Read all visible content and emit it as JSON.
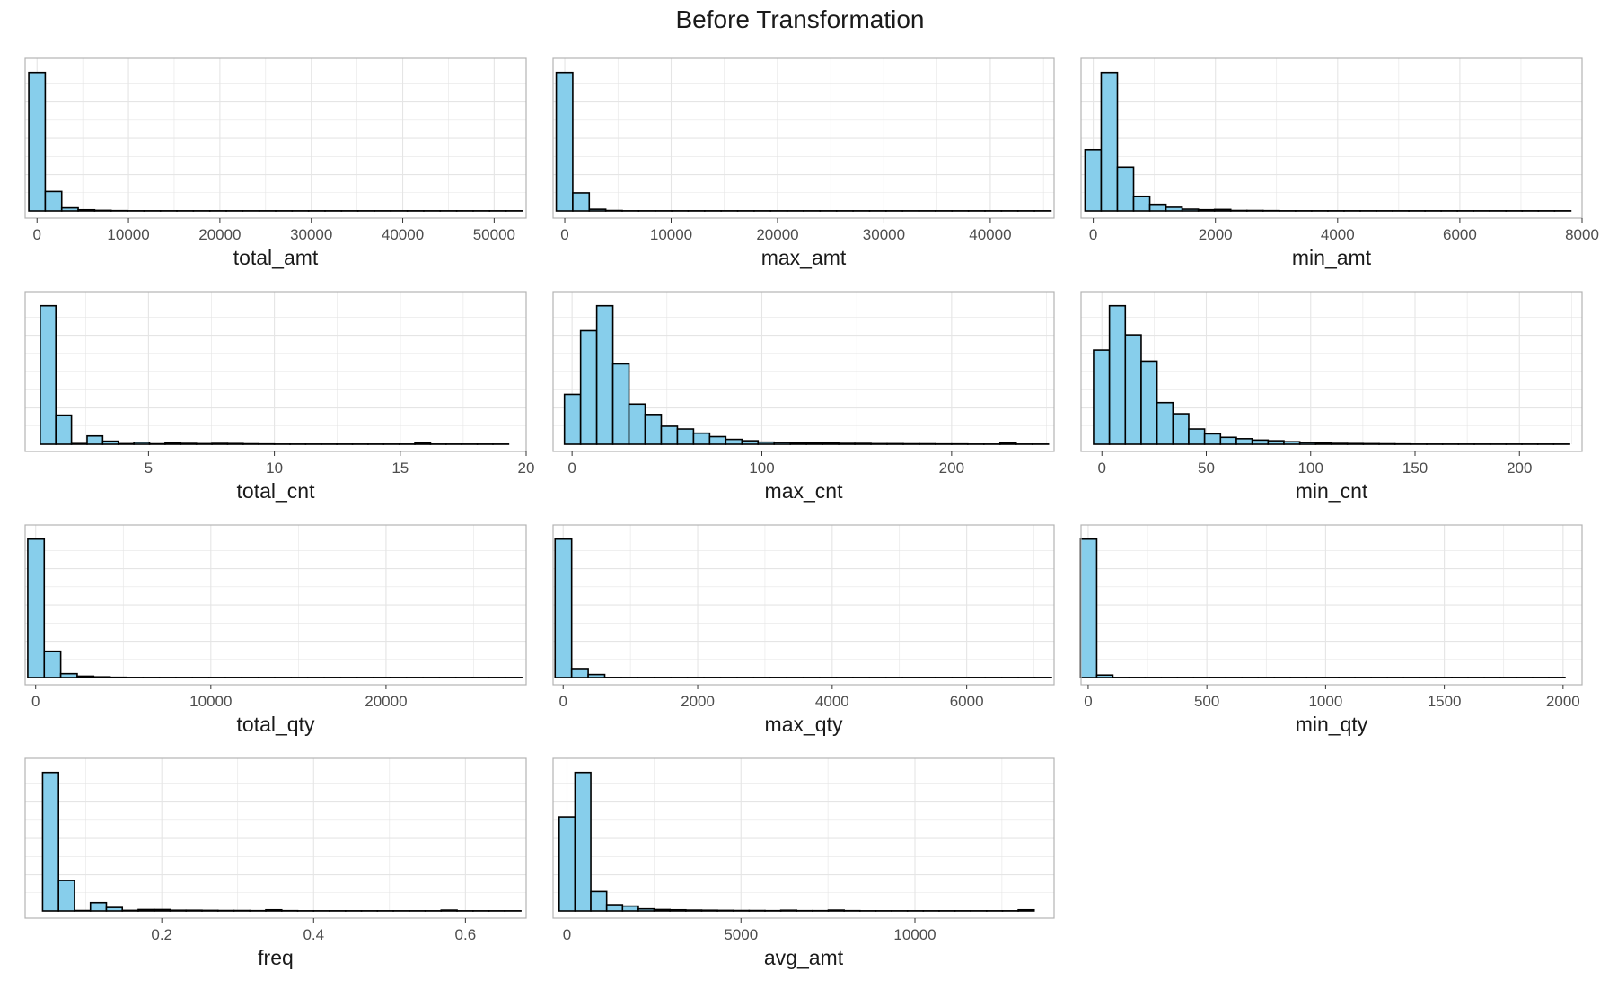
{
  "title": "Before Transformation",
  "colors": {
    "bar_fill": "#87CEEB",
    "bar_stroke": "#000000",
    "grid": "#e5e5e5",
    "panel_border": "#b3b3b3"
  },
  "chart_data": [
    {
      "type": "bar",
      "xlabel": "total_amt",
      "xlim": [
        -1300,
        53500
      ],
      "ticks": [
        0,
        10000,
        20000,
        30000,
        40000,
        50000
      ],
      "bin_start": -900,
      "bin_width": 1800,
      "counts": [
        1000,
        140,
        22,
        8,
        4,
        2,
        1,
        1,
        1,
        1,
        1,
        1,
        1,
        1,
        1,
        1,
        1,
        1,
        1,
        1,
        1,
        1,
        1,
        1,
        1,
        1,
        1,
        1,
        1,
        1
      ]
    },
    {
      "type": "bar",
      "xlabel": "max_amt",
      "xlim": [
        -1100,
        46000
      ],
      "ticks": [
        0,
        10000,
        20000,
        30000,
        40000
      ],
      "bin_start": -800,
      "bin_width": 1550,
      "counts": [
        1000,
        130,
        12,
        3,
        1,
        1,
        1,
        1,
        1,
        1,
        1,
        1,
        1,
        1,
        1,
        1,
        1,
        1,
        1,
        1,
        1,
        1,
        1,
        1,
        1,
        1,
        1,
        1,
        1,
        1
      ]
    },
    {
      "type": "bar",
      "xlabel": "min_amt",
      "xlim": [
        -200,
        8000
      ],
      "ticks": [
        0,
        2000,
        4000,
        6000,
        8000
      ],
      "bin_start": -135,
      "bin_width": 265,
      "counts": [
        420,
        950,
        300,
        100,
        45,
        25,
        12,
        8,
        10,
        3,
        3,
        2,
        1,
        1,
        1,
        1,
        1,
        1,
        1,
        1,
        1,
        1,
        1,
        1,
        1,
        1,
        1,
        1,
        1,
        1
      ]
    },
    {
      "type": "bar",
      "xlabel": "total_cnt",
      "xlim": [
        0.1,
        20.0
      ],
      "ticks": [
        5,
        10,
        15,
        20
      ],
      "bin_start": 0.7,
      "bin_width": 0.62,
      "counts": [
        1000,
        210,
        5,
        60,
        22,
        4,
        14,
        3,
        10,
        6,
        4,
        6,
        5,
        3,
        2,
        1,
        1,
        1,
        1,
        1,
        1,
        1,
        1,
        1,
        9,
        1,
        1,
        1,
        1,
        1
      ]
    },
    {
      "type": "bar",
      "xlabel": "max_cnt",
      "xlim": [
        -10,
        254
      ],
      "ticks": [
        0,
        100,
        200
      ],
      "bin_start": -4,
      "bin_width": 8.5,
      "counts": [
        360,
        820,
        1000,
        580,
        290,
        215,
        130,
        110,
        80,
        55,
        35,
        25,
        15,
        12,
        10,
        8,
        8,
        6,
        6,
        4,
        4,
        3,
        3,
        2,
        2,
        1,
        1,
        8,
        1,
        1
      ]
    },
    {
      "type": "bar",
      "xlabel": "min_cnt",
      "xlim": [
        -10,
        230
      ],
      "ticks": [
        0,
        50,
        100,
        150,
        200
      ],
      "bin_start": -4,
      "bin_width": 7.6,
      "counts": [
        680,
        1000,
        790,
        600,
        300,
        220,
        110,
        75,
        50,
        40,
        30,
        25,
        18,
        12,
        10,
        6,
        5,
        4,
        3,
        2,
        1,
        1,
        1,
        1,
        1,
        1,
        1,
        1,
        1,
        1
      ]
    },
    {
      "type": "bar",
      "xlabel": "total_qty",
      "xlim": [
        -600,
        28000
      ],
      "ticks": [
        0,
        10000,
        20000
      ],
      "bin_start": -450,
      "bin_width": 940,
      "counts": [
        1000,
        190,
        28,
        10,
        5,
        2,
        1,
        1,
        1,
        1,
        1,
        1,
        1,
        1,
        1,
        1,
        1,
        1,
        1,
        1,
        1,
        1,
        1,
        1,
        1,
        1,
        1,
        1,
        1,
        1
      ]
    },
    {
      "type": "bar",
      "xlabel": "max_qty",
      "xlim": [
        -150,
        7300
      ],
      "ticks": [
        0,
        2000,
        4000,
        6000
      ],
      "bin_start": -120,
      "bin_width": 246,
      "counts": [
        1000,
        65,
        22,
        1,
        1,
        1,
        1,
        1,
        1,
        1,
        1,
        1,
        1,
        1,
        1,
        1,
        1,
        1,
        1,
        1,
        1,
        1,
        1,
        1,
        1,
        1,
        1,
        1,
        1,
        1
      ]
    },
    {
      "type": "bar",
      "xlabel": "min_qty",
      "xlim": [
        -30,
        2080
      ],
      "ticks": [
        0,
        500,
        1000,
        1500,
        2000
      ],
      "bin_start": -32,
      "bin_width": 68,
      "counts": [
        1000,
        18,
        1,
        1,
        1,
        1,
        1,
        1,
        1,
        1,
        1,
        1,
        1,
        1,
        1,
        1,
        1,
        1,
        1,
        1,
        1,
        1,
        1,
        1,
        1,
        1,
        1,
        1,
        1,
        1
      ]
    },
    {
      "type": "bar",
      "xlabel": "freq",
      "xlim": [
        0.02,
        0.68
      ],
      "ticks": [
        0.2,
        0.4,
        0.6
      ],
      "bin_start": 0.043,
      "bin_width": 0.021,
      "counts": [
        1000,
        220,
        3,
        60,
        25,
        4,
        10,
        10,
        5,
        5,
        4,
        3,
        3,
        2,
        8,
        2,
        1,
        1,
        1,
        1,
        1,
        1,
        1,
        1,
        1,
        6,
        1,
        1,
        1,
        1
      ]
    },
    {
      "type": "bar",
      "xlabel": "avg_amt",
      "xlim": [
        -400,
        14000
      ],
      "ticks": [
        0,
        5000,
        10000
      ],
      "bin_start": -225,
      "bin_width": 455,
      "counts": [
        680,
        1000,
        140,
        45,
        35,
        15,
        10,
        8,
        6,
        5,
        4,
        3,
        3,
        2,
        5,
        2,
        2,
        6,
        2,
        1,
        1,
        1,
        1,
        1,
        1,
        1,
        1,
        1,
        1,
        8
      ]
    }
  ]
}
